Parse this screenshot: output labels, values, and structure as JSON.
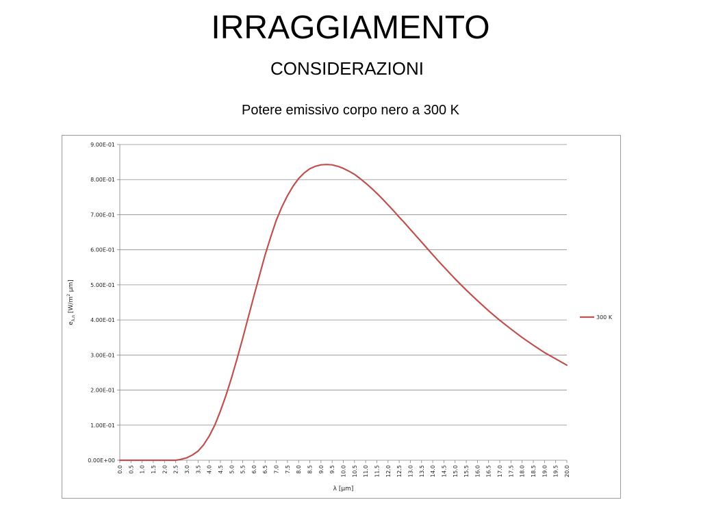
{
  "slide": {
    "title": "IRRAGGIAMENTO",
    "subtitle": "CONSIDERAZIONI",
    "caption": "Potere emissivo corpo nero a 300 K"
  },
  "chart_data": {
    "type": "line",
    "title": "",
    "xlabel": "λ [μm]",
    "ylabel_parts": [
      "e",
      "λ,n",
      " [W/m",
      "2",
      " μm]"
    ],
    "xlim": [
      0,
      20
    ],
    "ylim": [
      0,
      0.9
    ],
    "x_ticks": [
      "0.0",
      "0.5",
      "1.0",
      "1.5",
      "2.0",
      "2.5",
      "3.0",
      "3.5",
      "4.0",
      "4.5",
      "5.0",
      "5.5",
      "6.0",
      "6.5",
      "7.0",
      "7.5",
      "8.0",
      "8.5",
      "9.0",
      "9.5",
      "10.0",
      "10.5",
      "11.0",
      "11.5",
      "12.0",
      "12.5",
      "13.0",
      "13.5",
      "14.0",
      "14.5",
      "15.0",
      "15.5",
      "16.0",
      "16.5",
      "17.0",
      "17.5",
      "18.0",
      "18.5",
      "19.0",
      "19.5",
      "20.0"
    ],
    "y_ticks": [
      "0.00E+00",
      "1.00E-01",
      "2.00E-01",
      "3.00E-01",
      "4.00E-01",
      "5.00E-01",
      "6.00E-01",
      "7.00E-01",
      "8.00E-01",
      "9.00E-01"
    ],
    "y_tick_values": [
      0,
      0.1,
      0.2,
      0.3,
      0.4,
      0.5,
      0.6,
      0.7,
      0.8,
      0.9
    ],
    "grid": "horizontal",
    "legend_position": "right",
    "series": [
      {
        "name": "300 K",
        "color": "#c0504d",
        "x": [
          0,
          0.5,
          1.0,
          1.5,
          2.0,
          2.5,
          2.7,
          3.0,
          3.25,
          3.5,
          3.75,
          4.0,
          4.25,
          4.5,
          4.75,
          5.0,
          5.25,
          5.5,
          5.75,
          6.0,
          6.25,
          6.5,
          6.75,
          7.0,
          7.25,
          7.5,
          7.75,
          8.0,
          8.25,
          8.5,
          8.75,
          9.0,
          9.25,
          9.5,
          9.75,
          10.0,
          10.25,
          10.5,
          10.75,
          11.0,
          11.25,
          11.5,
          11.75,
          12.0,
          12.25,
          12.5,
          12.75,
          13.0,
          13.25,
          13.5,
          13.75,
          14.0,
          14.25,
          14.5,
          14.75,
          15.0,
          15.5,
          16.0,
          16.5,
          17.0,
          17.5,
          18.0,
          18.5,
          19.0,
          19.5,
          20.0
        ],
        "values": [
          0,
          0,
          0,
          0,
          0,
          0,
          0.002,
          0.007,
          0.015,
          0.026,
          0.044,
          0.069,
          0.1,
          0.14,
          0.185,
          0.235,
          0.29,
          0.348,
          0.408,
          0.468,
          0.527,
          0.585,
          0.636,
          0.684,
          0.722,
          0.754,
          0.781,
          0.803,
          0.819,
          0.831,
          0.838,
          0.842,
          0.843,
          0.842,
          0.838,
          0.832,
          0.824,
          0.815,
          0.803,
          0.79,
          0.776,
          0.761,
          0.745,
          0.728,
          0.711,
          0.693,
          0.676,
          0.658,
          0.64,
          0.622,
          0.604,
          0.586,
          0.568,
          0.551,
          0.534,
          0.517,
          0.485,
          0.455,
          0.426,
          0.399,
          0.374,
          0.35,
          0.328,
          0.307,
          0.289,
          0.271
        ]
      }
    ]
  }
}
